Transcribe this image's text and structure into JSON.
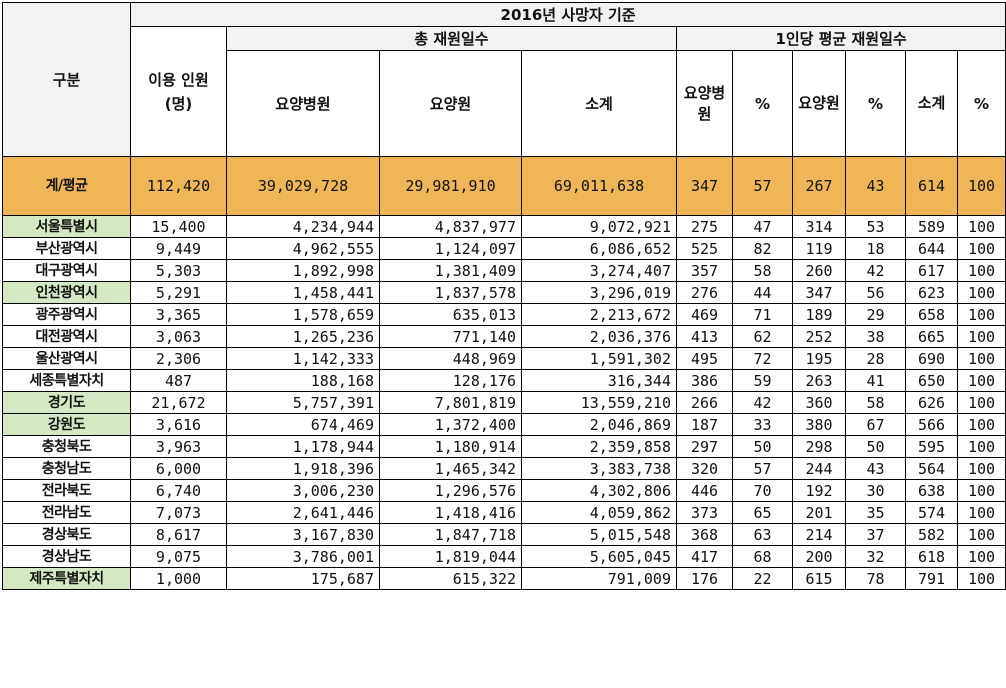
{
  "header": {
    "top": "2016년 사망자 기준",
    "category": "구분",
    "users": "이용 인원 (명)",
    "total_days_group": "총 재원일수",
    "per_person_group": "1인당 평균 재원일수",
    "cols": {
      "hospital": "요양병원",
      "facility": "요양원",
      "subtotal": "소계",
      "pp_hospital": "요양병원",
      "pct1": "%",
      "pp_facility": "요양원",
      "pct2": "%",
      "pp_subtotal": "소계",
      "pct3": "%"
    }
  },
  "total": {
    "region": "계/평균",
    "users": "112,420",
    "hospital": "39,029,728",
    "facility": "29,981,910",
    "subtotal": "69,011,638",
    "pp_hospital": "347",
    "pct1": "57",
    "pp_facility": "267",
    "pct2": "43",
    "pp_subtotal": "614",
    "pct3": "100"
  },
  "rows": [
    {
      "region": "서울특별시",
      "users": "15,400",
      "hospital": "4,234,944",
      "facility": "4,837,977",
      "subtotal": "9,072,921",
      "pp_hospital": "275",
      "pct1": "47",
      "pp_facility": "314",
      "pct2": "53",
      "pp_subtotal": "589",
      "pct3": "100"
    },
    {
      "region": "부산광역시",
      "users": "9,449",
      "hospital": "4,962,555",
      "facility": "1,124,097",
      "subtotal": "6,086,652",
      "pp_hospital": "525",
      "pct1": "82",
      "pp_facility": "119",
      "pct2": "18",
      "pp_subtotal": "644",
      "pct3": "100"
    },
    {
      "region": "대구광역시",
      "users": "5,303",
      "hospital": "1,892,998",
      "facility": "1,381,409",
      "subtotal": "3,274,407",
      "pp_hospital": "357",
      "pct1": "58",
      "pp_facility": "260",
      "pct2": "42",
      "pp_subtotal": "617",
      "pct3": "100"
    },
    {
      "region": "인천광역시",
      "users": "5,291",
      "hospital": "1,458,441",
      "facility": "1,837,578",
      "subtotal": "3,296,019",
      "pp_hospital": "276",
      "pct1": "44",
      "pp_facility": "347",
      "pct2": "56",
      "pp_subtotal": "623",
      "pct3": "100"
    },
    {
      "region": "광주광역시",
      "users": "3,365",
      "hospital": "1,578,659",
      "facility": "635,013",
      "subtotal": "2,213,672",
      "pp_hospital": "469",
      "pct1": "71",
      "pp_facility": "189",
      "pct2": "29",
      "pp_subtotal": "658",
      "pct3": "100"
    },
    {
      "region": "대전광역시",
      "users": "3,063",
      "hospital": "1,265,236",
      "facility": "771,140",
      "subtotal": "2,036,376",
      "pp_hospital": "413",
      "pct1": "62",
      "pp_facility": "252",
      "pct2": "38",
      "pp_subtotal": "665",
      "pct3": "100"
    },
    {
      "region": "울산광역시",
      "users": "2,306",
      "hospital": "1,142,333",
      "facility": "448,969",
      "subtotal": "1,591,302",
      "pp_hospital": "495",
      "pct1": "72",
      "pp_facility": "195",
      "pct2": "28",
      "pp_subtotal": "690",
      "pct3": "100"
    },
    {
      "region": "세종특별자치",
      "users": "487",
      "hospital": "188,168",
      "facility": "128,176",
      "subtotal": "316,344",
      "pp_hospital": "386",
      "pct1": "59",
      "pp_facility": "263",
      "pct2": "41",
      "pp_subtotal": "650",
      "pct3": "100"
    },
    {
      "region": "경기도",
      "users": "21,672",
      "hospital": "5,757,391",
      "facility": "7,801,819",
      "subtotal": "13,559,210",
      "pp_hospital": "266",
      "pct1": "42",
      "pp_facility": "360",
      "pct2": "58",
      "pp_subtotal": "626",
      "pct3": "100"
    },
    {
      "region": "강원도",
      "users": "3,616",
      "hospital": "674,469",
      "facility": "1,372,400",
      "subtotal": "2,046,869",
      "pp_hospital": "187",
      "pct1": "33",
      "pp_facility": "380",
      "pct2": "67",
      "pp_subtotal": "566",
      "pct3": "100"
    },
    {
      "region": "충청북도",
      "users": "3,963",
      "hospital": "1,178,944",
      "facility": "1,180,914",
      "subtotal": "2,359,858",
      "pp_hospital": "297",
      "pct1": "50",
      "pp_facility": "298",
      "pct2": "50",
      "pp_subtotal": "595",
      "pct3": "100"
    },
    {
      "region": "충청남도",
      "users": "6,000",
      "hospital": "1,918,396",
      "facility": "1,465,342",
      "subtotal": "3,383,738",
      "pp_hospital": "320",
      "pct1": "57",
      "pp_facility": "244",
      "pct2": "43",
      "pp_subtotal": "564",
      "pct3": "100"
    },
    {
      "region": "전라북도",
      "users": "6,740",
      "hospital": "3,006,230",
      "facility": "1,296,576",
      "subtotal": "4,302,806",
      "pp_hospital": "446",
      "pct1": "70",
      "pp_facility": "192",
      "pct2": "30",
      "pp_subtotal": "638",
      "pct3": "100"
    },
    {
      "region": "전라남도",
      "users": "7,073",
      "hospital": "2,641,446",
      "facility": "1,418,416",
      "subtotal": "4,059,862",
      "pp_hospital": "373",
      "pct1": "65",
      "pp_facility": "201",
      "pct2": "35",
      "pp_subtotal": "574",
      "pct3": "100"
    },
    {
      "region": "경상북도",
      "users": "8,617",
      "hospital": "3,167,830",
      "facility": "1,847,718",
      "subtotal": "5,015,548",
      "pp_hospital": "368",
      "pct1": "63",
      "pp_facility": "214",
      "pct2": "37",
      "pp_subtotal": "582",
      "pct3": "100"
    },
    {
      "region": "경상남도",
      "users": "9,075",
      "hospital": "3,786,001",
      "facility": "1,819,044",
      "subtotal": "5,605,045",
      "pp_hospital": "417",
      "pct1": "68",
      "pp_facility": "200",
      "pct2": "32",
      "pp_subtotal": "618",
      "pct3": "100"
    },
    {
      "region": "제주특별자치",
      "users": "1,000",
      "hospital": "175,687",
      "facility": "615,322",
      "subtotal": "791,009",
      "pp_hospital": "176",
      "pct1": "22",
      "pp_facility": "615",
      "pct2": "78",
      "pp_subtotal": "791",
      "pct3": "100"
    }
  ],
  "colors": {
    "total_row": "#f0b556",
    "highlight_region": "#d5e8c4",
    "header": "#f2f2f2"
  }
}
